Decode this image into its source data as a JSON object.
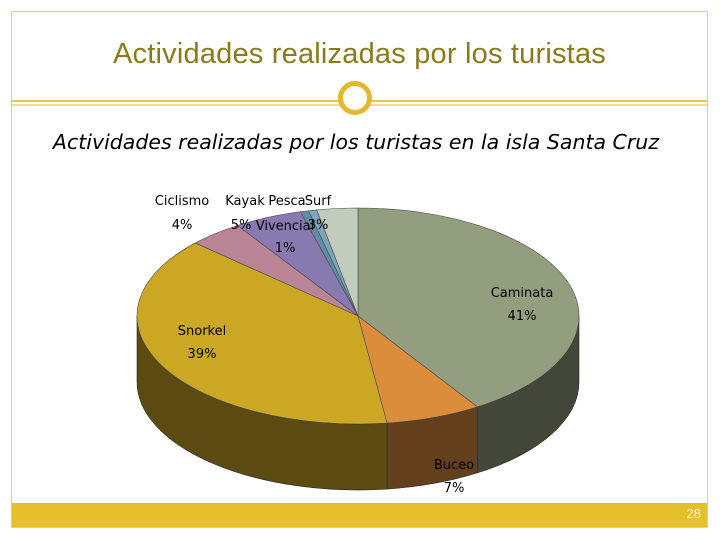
{
  "slide": {
    "title": "Actividades realizadas por los turistas",
    "page_number": "28"
  },
  "colors": {
    "accent": "#e6bf2f",
    "title_text": "#8a7a1a"
  },
  "chart_data": {
    "type": "pie",
    "title": "Actividades realizadas por los turistas en la isla Santa Cruz",
    "three_d": true,
    "slices": [
      {
        "name": "Caminata",
        "value": 41,
        "label": "41%",
        "color": "#939e7e"
      },
      {
        "name": "Buceo",
        "value": 7,
        "label": "7%",
        "color": "#dc8d3c"
      },
      {
        "name": "Snorkel",
        "value": 39,
        "label": "39%",
        "color": "#cba724"
      },
      {
        "name": "Ciclismo",
        "value": 4,
        "label": "4%",
        "color": "#b98596"
      },
      {
        "name": "Kayak",
        "value": 5,
        "label": "5%",
        "color": "#8879b0"
      },
      {
        "name": "Pesca",
        "value": 0.6,
        "label": "",
        "color": "#5f8ea0"
      },
      {
        "name": "Vivencial",
        "value": 0.6,
        "label": "1%",
        "color": "#7fa3be"
      },
      {
        "name": "Surf",
        "value": 3,
        "label": "3%",
        "color": "#c2ccbc"
      }
    ]
  }
}
